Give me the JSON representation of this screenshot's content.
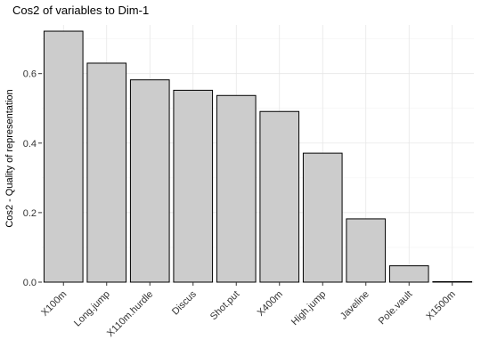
{
  "chart_data": {
    "type": "bar",
    "title": "Cos2 of variables to Dim-1",
    "xlabel": "",
    "ylabel": "Cos2 - Quality of representation",
    "categories": [
      "X100m",
      "Long.jump",
      "X110m.hurdle",
      "Discus",
      "Shot.put",
      "X400m",
      "High.jump",
      "Javeline",
      "Pole.vault",
      "X1500m"
    ],
    "values": [
      0.722,
      0.63,
      0.582,
      0.552,
      0.537,
      0.491,
      0.371,
      0.182,
      0.047,
      0.0004
    ],
    "ylim": [
      0,
      0.74
    ],
    "yticks": [
      0.0,
      0.2,
      0.4,
      0.6
    ],
    "ytick_labels": [
      "0.0",
      "0.2",
      "0.4",
      "0.6"
    ],
    "grid": true,
    "legend": "none",
    "colors": {
      "bar_fill": "#cccccc",
      "bar_stroke": "#000000",
      "grid": "#e6e6e6"
    }
  }
}
